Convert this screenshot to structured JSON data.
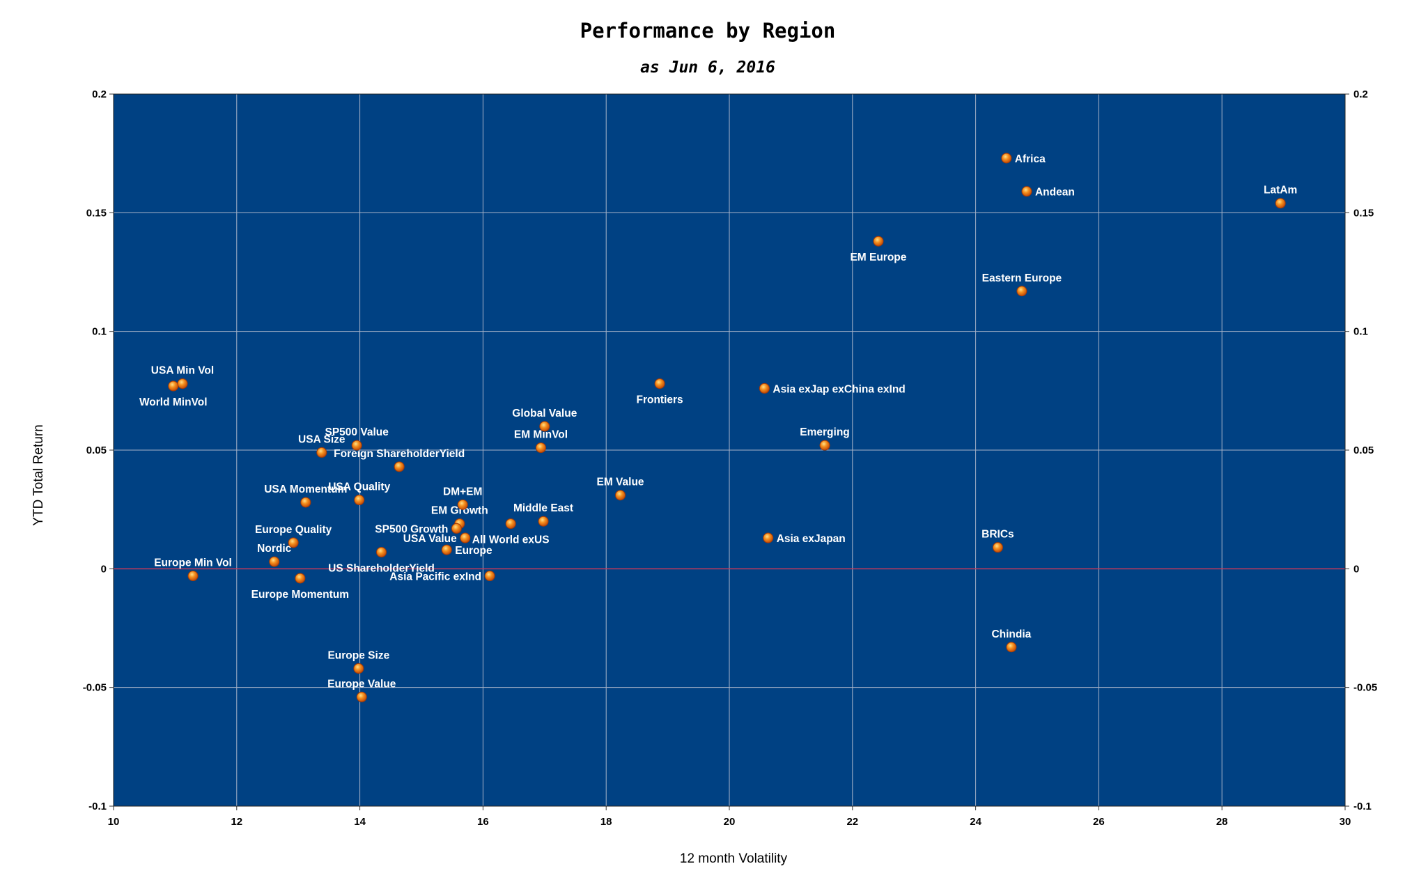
{
  "chart_data": {
    "type": "scatter",
    "title": "Performance by Region",
    "subtitle": "as Jun 6, 2016",
    "xlabel": "12 month Volatility",
    "ylabel": "YTD Total Return",
    "xlim": [
      10,
      30
    ],
    "ylim": [
      -0.1,
      0.2
    ],
    "x_ticks": [
      10,
      12,
      14,
      16,
      18,
      20,
      22,
      24,
      26,
      28,
      30
    ],
    "x_tick_labels": [
      "10",
      "12",
      "14",
      "16",
      "18",
      "20",
      "22",
      "24",
      "26",
      "28",
      "30"
    ],
    "y_ticks": [
      -0.1,
      -0.05,
      0,
      0.05,
      0.1,
      0.15,
      0.2
    ],
    "y_tick_labels": [
      "-0.1",
      "-0.05",
      "0",
      "0.05",
      "0.1",
      "0.15",
      "0.2"
    ],
    "grid": true,
    "secondary_y_axis": true,
    "colors": {
      "plot_background": "#004183",
      "grid": "#a9b4c8",
      "zero_line": "#c43a5a",
      "marker": "#f07a18",
      "marker_highlight": "#ffd27a",
      "label": "#ffffff"
    },
    "points": [
      {
        "name": "Africa",
        "x": 24.5,
        "y": 0.173,
        "pos": "right"
      },
      {
        "name": "Andean",
        "x": 24.83,
        "y": 0.159,
        "pos": "right"
      },
      {
        "name": "LatAm",
        "x": 28.95,
        "y": 0.154,
        "pos": "above"
      },
      {
        "name": "EM Europe",
        "x": 22.42,
        "y": 0.138,
        "pos": "below"
      },
      {
        "name": "Eastern Europe",
        "x": 24.75,
        "y": 0.117,
        "pos": "above"
      },
      {
        "name": "USA Min Vol",
        "x": 11.12,
        "y": 0.078,
        "pos": "above"
      },
      {
        "name": "World MinVol",
        "x": 10.97,
        "y": 0.077,
        "pos": "below"
      },
      {
        "name": "Frontiers",
        "x": 18.87,
        "y": 0.078,
        "pos": "below"
      },
      {
        "name": "Asia exJap exChina exInd",
        "x": 20.57,
        "y": 0.076,
        "pos": "right"
      },
      {
        "name": "Global Value",
        "x": 17.0,
        "y": 0.06,
        "pos": "above"
      },
      {
        "name": "EM MinVol",
        "x": 16.94,
        "y": 0.051,
        "pos": "above"
      },
      {
        "name": "Emerging",
        "x": 21.55,
        "y": 0.052,
        "pos": "above"
      },
      {
        "name": "SP500 Value",
        "x": 13.95,
        "y": 0.052,
        "pos": "above"
      },
      {
        "name": "USA Size",
        "x": 13.38,
        "y": 0.049,
        "pos": "above"
      },
      {
        "name": "Foreign ShareholderYield",
        "x": 14.64,
        "y": 0.043,
        "pos": "above"
      },
      {
        "name": "EM Value",
        "x": 18.23,
        "y": 0.031,
        "pos": "above"
      },
      {
        "name": "USA Momentum",
        "x": 13.12,
        "y": 0.028,
        "pos": "above"
      },
      {
        "name": "USA Quality",
        "x": 13.99,
        "y": 0.029,
        "pos": "above"
      },
      {
        "name": "DM+EM",
        "x": 15.67,
        "y": 0.027,
        "pos": "above"
      },
      {
        "name": "EM Growth",
        "x": 15.62,
        "y": 0.019,
        "pos": "above"
      },
      {
        "name": "Middle East",
        "x": 16.98,
        "y": 0.02,
        "pos": "above"
      },
      {
        "name": "SP500 Growth",
        "x": 15.57,
        "y": 0.017,
        "pos": "left"
      },
      {
        "name": "All World exUS",
        "x": 16.45,
        "y": 0.019,
        "pos": "below"
      },
      {
        "name": "USA Value",
        "x": 15.71,
        "y": 0.013,
        "pos": "left"
      },
      {
        "name": "Asia exJapan",
        "x": 20.63,
        "y": 0.013,
        "pos": "right"
      },
      {
        "name": "BRICs",
        "x": 24.36,
        "y": 0.009,
        "pos": "above"
      },
      {
        "name": "Europe Quality",
        "x": 12.92,
        "y": 0.011,
        "pos": "above"
      },
      {
        "name": "Nordic",
        "x": 12.61,
        "y": 0.003,
        "pos": "above"
      },
      {
        "name": "US ShareholderYield",
        "x": 14.35,
        "y": 0.007,
        "pos": "below"
      },
      {
        "name": "Europe",
        "x": 15.41,
        "y": 0.008,
        "pos": "right"
      },
      {
        "name": "Europe Min Vol",
        "x": 11.29,
        "y": -0.003,
        "pos": "above"
      },
      {
        "name": "Europe Momentum",
        "x": 13.03,
        "y": -0.004,
        "pos": "below"
      },
      {
        "name": "Asia Pacific exInd",
        "x": 16.11,
        "y": -0.003,
        "pos": "left"
      },
      {
        "name": "Chindia",
        "x": 24.58,
        "y": -0.033,
        "pos": "above"
      },
      {
        "name": "Europe Size",
        "x": 13.98,
        "y": -0.042,
        "pos": "above"
      },
      {
        "name": "Europe Value",
        "x": 14.03,
        "y": -0.054,
        "pos": "above"
      }
    ]
  }
}
